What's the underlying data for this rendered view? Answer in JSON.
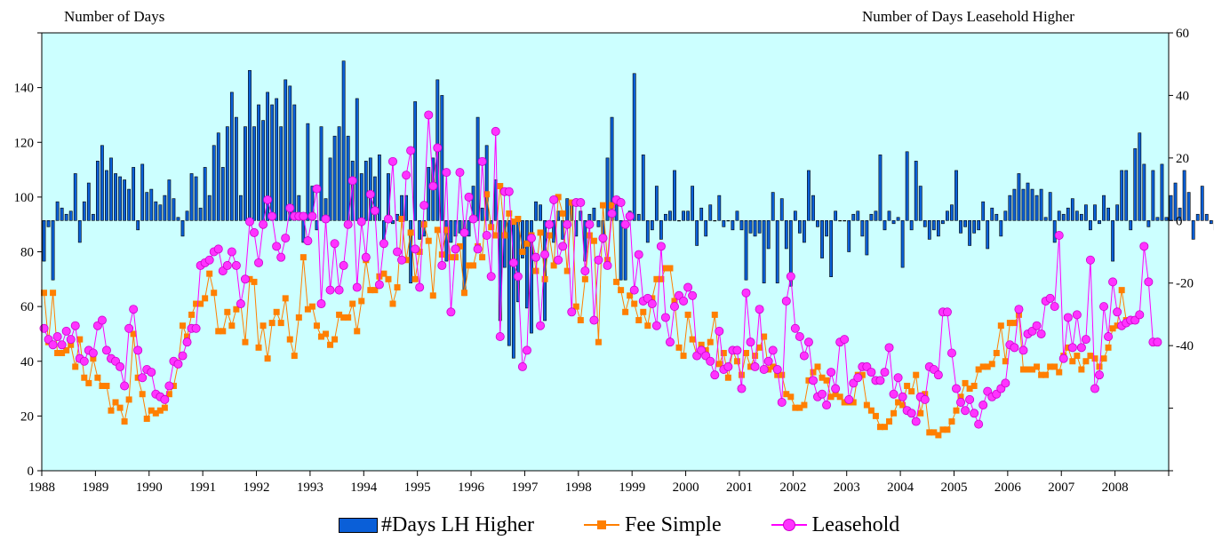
{
  "chart_data": {
    "type": "combo",
    "left_axis_title": "Number of Days",
    "right_axis_title": "Number of Days Leasehold Higher",
    "x_axis": {
      "start_year": 1988,
      "end_year": 2009,
      "tick_labels": [
        "1988",
        "1989",
        "1990",
        "1991",
        "1992",
        "1993",
        "1994",
        "1995",
        "1996",
        "1997",
        "1998",
        "1999",
        "2000",
        "2001",
        "2002",
        "2003",
        "2004",
        "2005",
        "2006",
        "2007",
        "2008"
      ]
    },
    "left_axis": {
      "range": [
        0,
        160
      ],
      "tick_labels": [
        "0",
        "20",
        "40",
        "60",
        "80",
        "100",
        "120",
        "140"
      ]
    },
    "right_axis": {
      "range": [
        -80,
        60
      ],
      "tick_labels": [
        "60",
        "40",
        "20",
        "0",
        "-20",
        "-40"
      ]
    },
    "grid": false,
    "legend_position": "bottom",
    "series": [
      {
        "name": "#Days LH Higher",
        "kind": "bar",
        "axis": "right",
        "color": "#0a5fd8",
        "values": [
          -13,
          -2,
          -19,
          6,
          4,
          2,
          3,
          15,
          -7,
          6,
          12,
          2,
          19,
          24,
          16,
          20,
          15,
          14,
          13,
          10,
          17,
          -3,
          18,
          9,
          10,
          6,
          5,
          8,
          13,
          7,
          1,
          -5,
          3,
          15,
          14,
          4,
          17,
          8,
          24,
          28,
          17,
          30,
          41,
          33,
          8,
          30,
          48,
          30,
          37,
          32,
          41,
          37,
          39,
          30,
          45,
          43,
          37,
          8,
          -7,
          31,
          11,
          -3,
          30,
          7,
          20,
          27,
          30,
          51,
          27,
          19,
          39,
          15,
          19,
          20,
          14,
          21,
          -7,
          15,
          -1,
          2,
          8,
          8,
          -20,
          38,
          -6,
          -5,
          17,
          20,
          45,
          40,
          -13,
          -7,
          -5,
          -4,
          -24,
          -5,
          11,
          33,
          4,
          24,
          -2,
          13,
          -32,
          -15,
          -40,
          -44,
          -26,
          -12,
          -28,
          -36,
          6,
          5,
          -32,
          -1,
          -7,
          3,
          -6,
          7,
          5,
          -5,
          3,
          -13,
          2,
          4,
          -2,
          -7,
          20,
          33,
          5,
          -19,
          -19,
          3,
          47,
          2,
          21,
          -7,
          -3,
          11,
          -6,
          2,
          3,
          16,
          0,
          3,
          3,
          11,
          -8,
          4,
          -5,
          5,
          0,
          8,
          -2,
          0,
          -3,
          3,
          -3,
          -19,
          -4,
          -5,
          -4,
          -20,
          -9,
          9,
          -20,
          7,
          -9,
          -21,
          3,
          -4,
          -7,
          16,
          8,
          -2,
          -12,
          -5,
          -18,
          3,
          0,
          0,
          -10,
          2,
          3,
          -5,
          -11,
          2,
          3,
          21,
          -3,
          3,
          -1,
          1,
          -15,
          22,
          -3,
          19,
          11,
          -2,
          -6,
          -3,
          -5,
          -1,
          3,
          5,
          16,
          -4,
          -2,
          -8,
          -4,
          -3,
          6,
          -9,
          4,
          2,
          -5,
          3,
          8,
          10,
          15,
          10,
          12,
          10,
          8,
          10,
          1,
          9,
          -7,
          3,
          2,
          4,
          7,
          3,
          2,
          5,
          -3,
          5,
          -1,
          8,
          4,
          -13,
          5,
          16,
          16,
          -3,
          23,
          28,
          18,
          -2,
          16,
          1,
          18,
          1,
          8,
          12,
          4,
          16,
          9,
          -6,
          2,
          11,
          2,
          -1,
          -3,
          13,
          23,
          -1,
          6,
          9,
          13,
          15,
          -10,
          10,
          24,
          -5,
          10,
          11,
          11,
          8,
          29,
          -2,
          7,
          19,
          21,
          22,
          -2,
          11,
          -7,
          12,
          40,
          -12,
          -10,
          10,
          -5,
          -2,
          27,
          22,
          12,
          14,
          16,
          8,
          12,
          -9,
          16,
          -1,
          30,
          -13
        ]
      },
      {
        "name": "Fee Simple",
        "kind": "line",
        "axis": "left",
        "color": "#ff7f00",
        "values": [
          65,
          47,
          65,
          43,
          43,
          44,
          46,
          38,
          48,
          34,
          32,
          41,
          34,
          31,
          31,
          22,
          25,
          23,
          18,
          26,
          50,
          34,
          28,
          19,
          22,
          21,
          22,
          23,
          28,
          31,
          39,
          53,
          49,
          57,
          61,
          61,
          63,
          72,
          65,
          51,
          51,
          58,
          53,
          59,
          61,
          47,
          70,
          69,
          45,
          53,
          41,
          54,
          58,
          54,
          63,
          48,
          42,
          56,
          78,
          59,
          60,
          53,
          49,
          50,
          46,
          48,
          57,
          56,
          56,
          61,
          51,
          62,
          77,
          66,
          66,
          71,
          72,
          70,
          61,
          67,
          92,
          77,
          87,
          70,
          80,
          90,
          84,
          64,
          88,
          79,
          88,
          78,
          78,
          82,
          65,
          75,
          75,
          82,
          78,
          101,
          89,
          86,
          104,
          86,
          94,
          91,
          92,
          80,
          83,
          86,
          73,
          87,
          70,
          86,
          75,
          100,
          94,
          73,
          98,
          60,
          55,
          70,
          86,
          84,
          47,
          97,
          77,
          97,
          69,
          66,
          58,
          64,
          61,
          55,
          58,
          53,
          63,
          70,
          70,
          74,
          74,
          62,
          45,
          42,
          57,
          48,
          42,
          46,
          44,
          47,
          57,
          39,
          43,
          34,
          44,
          40,
          35,
          43,
          38,
          42,
          45,
          49,
          37,
          38,
          35,
          35,
          28,
          27,
          23,
          23,
          24,
          33,
          36,
          38,
          34,
          33,
          27,
          28,
          27,
          25,
          25,
          25,
          35,
          35,
          24,
          22,
          20,
          16,
          16,
          18,
          21,
          25,
          24,
          31,
          29,
          35,
          21,
          28,
          14,
          14,
          13,
          15,
          15,
          18,
          22,
          27,
          32,
          30,
          31,
          37,
          38,
          38,
          39,
          43,
          53,
          40,
          54,
          54,
          57,
          37,
          37,
          37,
          38,
          35,
          35,
          38,
          38,
          36,
          42,
          45,
          40,
          42,
          37,
          40,
          42,
          41,
          38,
          41,
          45,
          52,
          53,
          66,
          55
        ]
      },
      {
        "name": "Leasehold",
        "kind": "line",
        "axis": "left",
        "color": "#ff00ff",
        "values": [
          52,
          48,
          46,
          49,
          46,
          51,
          48,
          53,
          41,
          40,
          44,
          43,
          53,
          55,
          44,
          41,
          40,
          38,
          31,
          52,
          59,
          44,
          34,
          37,
          36,
          28,
          27,
          26,
          31,
          40,
          39,
          42,
          47,
          52,
          52,
          75,
          76,
          77,
          80,
          81,
          73,
          75,
          80,
          75,
          61,
          70,
          91,
          87,
          76,
          90,
          99,
          93,
          82,
          78,
          85,
          96,
          93,
          93,
          93,
          84,
          93,
          103,
          61,
          92,
          66,
          83,
          66,
          75,
          90,
          106,
          67,
          91,
          78,
          101,
          95,
          68,
          83,
          92,
          113,
          80,
          77,
          108,
          117,
          81,
          67,
          97,
          130,
          104,
          118,
          75,
          109,
          58,
          81,
          109,
          87,
          100,
          92,
          81,
          113,
          86,
          71,
          124,
          49,
          102,
          102,
          76,
          71,
          38,
          44,
          85,
          78,
          53,
          79,
          90,
          99,
          77,
          82,
          90,
          58,
          98,
          98,
          73,
          90,
          55,
          77,
          85,
          75,
          94,
          99,
          98,
          90,
          93,
          66,
          79,
          62,
          63,
          61,
          53,
          82,
          56,
          47,
          60,
          64,
          62,
          67,
          64,
          42,
          44,
          42,
          40,
          35,
          51,
          37,
          38,
          44,
          44,
          30,
          65,
          47,
          38,
          59,
          37,
          40,
          44,
          37,
          25,
          62,
          71,
          52,
          49,
          42,
          47,
          33,
          27,
          28,
          24,
          36,
          30,
          47,
          48,
          26,
          32,
          34,
          38,
          38,
          36,
          33,
          33,
          36,
          45,
          28,
          34,
          27,
          22,
          21,
          18,
          27,
          26,
          38,
          37,
          35,
          58,
          58,
          43,
          30,
          25,
          22,
          26,
          21,
          17,
          24,
          29,
          27,
          28,
          30,
          32,
          46,
          45,
          59,
          44,
          50,
          51,
          53,
          50,
          62,
          63,
          60,
          86,
          41,
          56,
          45,
          57,
          45,
          48,
          77,
          30,
          35,
          60,
          49,
          69,
          58,
          53,
          54,
          55,
          55,
          57,
          82,
          69,
          47,
          47
        ]
      }
    ]
  }
}
